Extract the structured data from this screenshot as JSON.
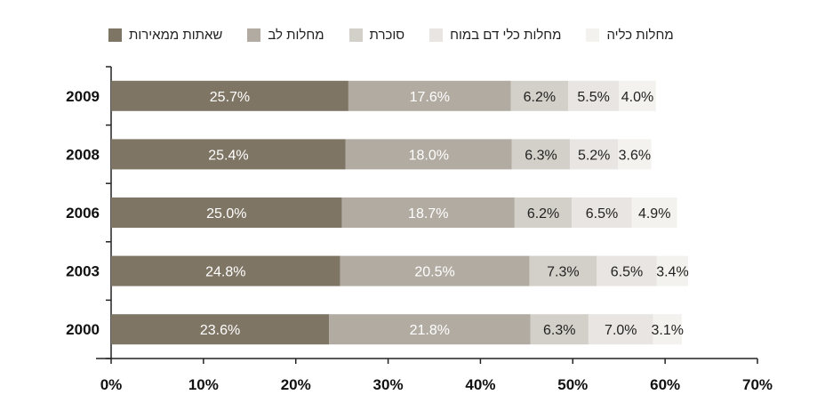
{
  "chart_data": {
    "type": "bar",
    "stacked": true,
    "orientation": "horizontal",
    "categories": [
      "2009",
      "2008",
      "2006",
      "2003",
      "2000"
    ],
    "series": [
      {
        "name": "שאתות ממאירות",
        "color": "#7f7565",
        "values": [
          25.7,
          25.4,
          25.0,
          24.8,
          23.6
        ],
        "labels": [
          "25.7%",
          "25.4%",
          "25.0%",
          "24.8%",
          "23.6%"
        ]
      },
      {
        "name": "מחלות לב",
        "color": "#b1aba2",
        "values": [
          17.6,
          18.0,
          18.7,
          20.5,
          21.8
        ],
        "labels": [
          "17.6%",
          "18.0%",
          "18.7%",
          "20.5%",
          "21.8%"
        ]
      },
      {
        "name": "סוכרת",
        "color": "#d3d0c9",
        "values": [
          6.2,
          6.3,
          6.2,
          7.3,
          6.3
        ],
        "labels": [
          "6.2%",
          "6.3%",
          "6.2%",
          "7.3%",
          "6.3%"
        ]
      },
      {
        "name": "מחלות כלי דם במוח",
        "color": "#e8e5e2",
        "values": [
          5.5,
          5.2,
          6.5,
          6.5,
          7.0
        ],
        "labels": [
          "5.5%",
          "5.2%",
          "6.5%",
          "6.5%",
          "7.0%"
        ]
      },
      {
        "name": "מחלות כליה",
        "color": "#f4f2ee",
        "values": [
          4.0,
          3.6,
          4.9,
          3.4,
          3.1
        ],
        "labels": [
          "4.0%",
          "3.6%",
          "4.9%",
          "3.4%",
          "3.1%"
        ]
      }
    ],
    "xlim": [
      0,
      70
    ],
    "xticks": [
      "0%",
      "10%",
      "20%",
      "30%",
      "40%",
      "50%",
      "60%",
      "70%"
    ],
    "legend_position": "top",
    "grid": false
  }
}
